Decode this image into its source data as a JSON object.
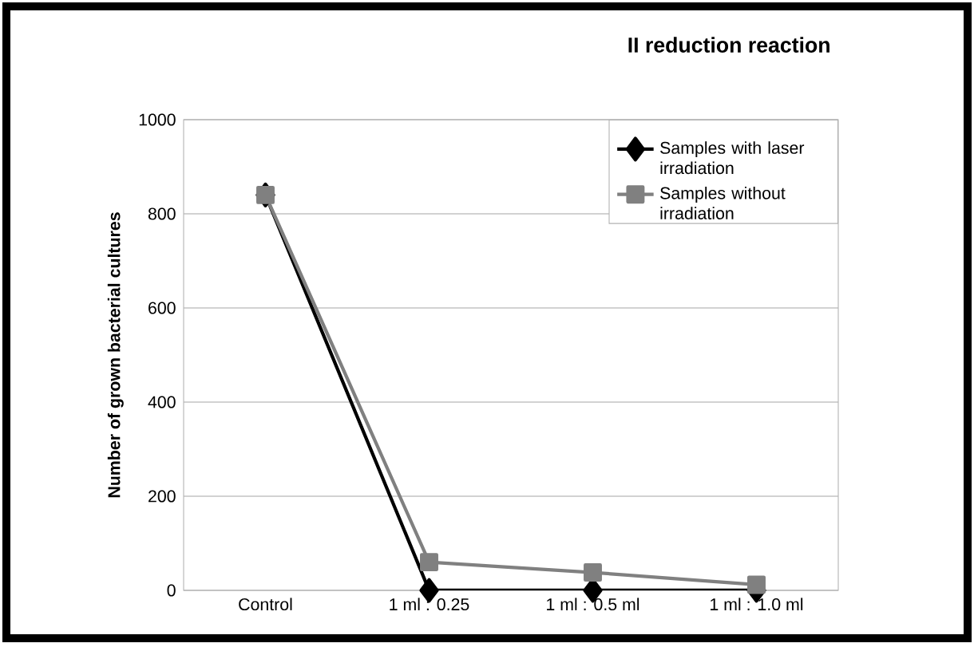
{
  "chart_data": {
    "type": "line",
    "title": "II reduction reaction",
    "ylabel": "Number of grown bacterial cultures",
    "categories": [
      "Control",
      "1 ml : 0.25",
      "1 ml : 0.5 ml",
      "1 ml : 1.0 ml"
    ],
    "series": [
      {
        "name": "Samples with laser irradiation",
        "color": "#000000",
        "marker": "diamond",
        "values": [
          840,
          0,
          0,
          0
        ]
      },
      {
        "name": "Samples without irradiation",
        "color": "#808080",
        "marker": "square",
        "values": [
          840,
          60,
          38,
          12
        ]
      }
    ],
    "ylim": [
      0,
      1000
    ],
    "yticks": [
      0,
      200,
      400,
      600,
      800,
      1000
    ],
    "grid": "y",
    "legend": "top right"
  }
}
